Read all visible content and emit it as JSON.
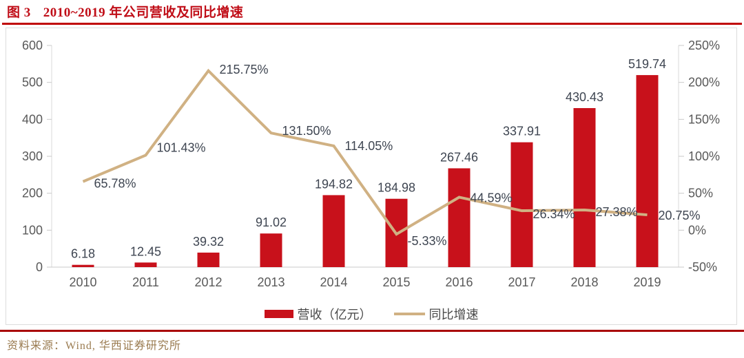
{
  "figure": {
    "label": "图 3",
    "title": "2010~2019 年公司营收及同比增速"
  },
  "source": "资料来源：Wind, 华西证券研究所",
  "colors": {
    "title_red": "#c00d17",
    "rule_top": "#c00000",
    "rule_bottom": "#a80000",
    "bar": "#c8111b",
    "line": "#d0b183",
    "axis_text": "#595959",
    "data_label": "#3e4551",
    "legend_text": "#4a4a4a",
    "source_text": "#9a7b50",
    "axis_line": "#d9d9d9",
    "tick_line": "#c9c9c9"
  },
  "chart_data": {
    "type": "bar+line",
    "categories": [
      "2010",
      "2011",
      "2012",
      "2013",
      "2014",
      "2015",
      "2016",
      "2017",
      "2018",
      "2019"
    ],
    "series": [
      {
        "name": "营收（亿元）",
        "type": "bar",
        "axis": "left",
        "values": [
          6.18,
          12.45,
          39.32,
          91.02,
          194.82,
          184.98,
          267.46,
          337.91,
          430.43,
          519.74
        ],
        "labels": [
          "6.18",
          "12.45",
          "39.32",
          "91.02",
          "194.82",
          "184.98",
          "267.46",
          "337.91",
          "430.43",
          "519.74"
        ]
      },
      {
        "name": "同比增速",
        "type": "line",
        "axis": "right",
        "values": [
          65.78,
          101.43,
          215.75,
          131.5,
          114.05,
          -5.33,
          44.59,
          26.34,
          27.38,
          20.75
        ],
        "labels": [
          "65.78%",
          "101.43%",
          "215.75%",
          "131.50%",
          "114.05%",
          "-5.33%",
          "44.59%",
          "26.34%",
          "27.38%",
          "20.75%"
        ]
      }
    ],
    "left_axis": {
      "min": 0,
      "max": 600,
      "ticks": [
        0,
        100,
        200,
        300,
        400,
        500,
        600
      ]
    },
    "right_axis": {
      "min": -50,
      "max": 250,
      "ticks": [
        -50,
        0,
        50,
        100,
        150,
        200,
        250
      ],
      "suffix": "%"
    },
    "grid": false,
    "legend_position": "bottom-center"
  }
}
